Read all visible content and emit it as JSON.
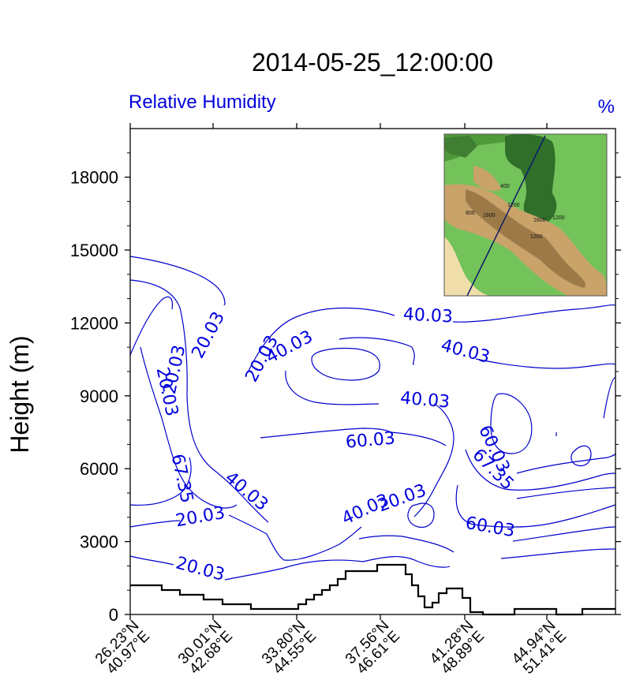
{
  "chart_data": {
    "type": "contour",
    "title": "2014-05-25_12:00:00",
    "left_subtitle": "Relative Humidity",
    "right_subtitle": "%",
    "ylabel": "Height (m)",
    "ylim": [
      0,
      20000
    ],
    "yticks": [
      "0",
      "3000",
      "6000",
      "9000",
      "12000",
      "15000",
      "18000"
    ],
    "xticks": [
      {
        "lat": "26.23°N",
        "lon": "40.97°E"
      },
      {
        "lat": "30.01°N",
        "lon": "42.68°E"
      },
      {
        "lat": "33.80°N",
        "lon": "44.55°E"
      },
      {
        "lat": "37.56°N",
        "lon": "46.61°E"
      },
      {
        "lat": "41.28°N",
        "lon": "48.89°E"
      },
      {
        "lat": "44.94°N",
        "lon": "51.41°E"
      }
    ],
    "contour_labels": [
      "20.03",
      "40.03",
      "20.03",
      "20.03",
      "40.03",
      "60.03",
      "67.35",
      "40.03",
      "20.03",
      "20.03",
      "40.03",
      "20.03",
      "20.03",
      "40.03",
      "40.03",
      "60.03",
      "67.35",
      "60.03"
    ],
    "inset_labels": [
      "400",
      "800",
      "1600",
      "1200",
      "1600",
      "1200",
      "1200"
    ]
  }
}
